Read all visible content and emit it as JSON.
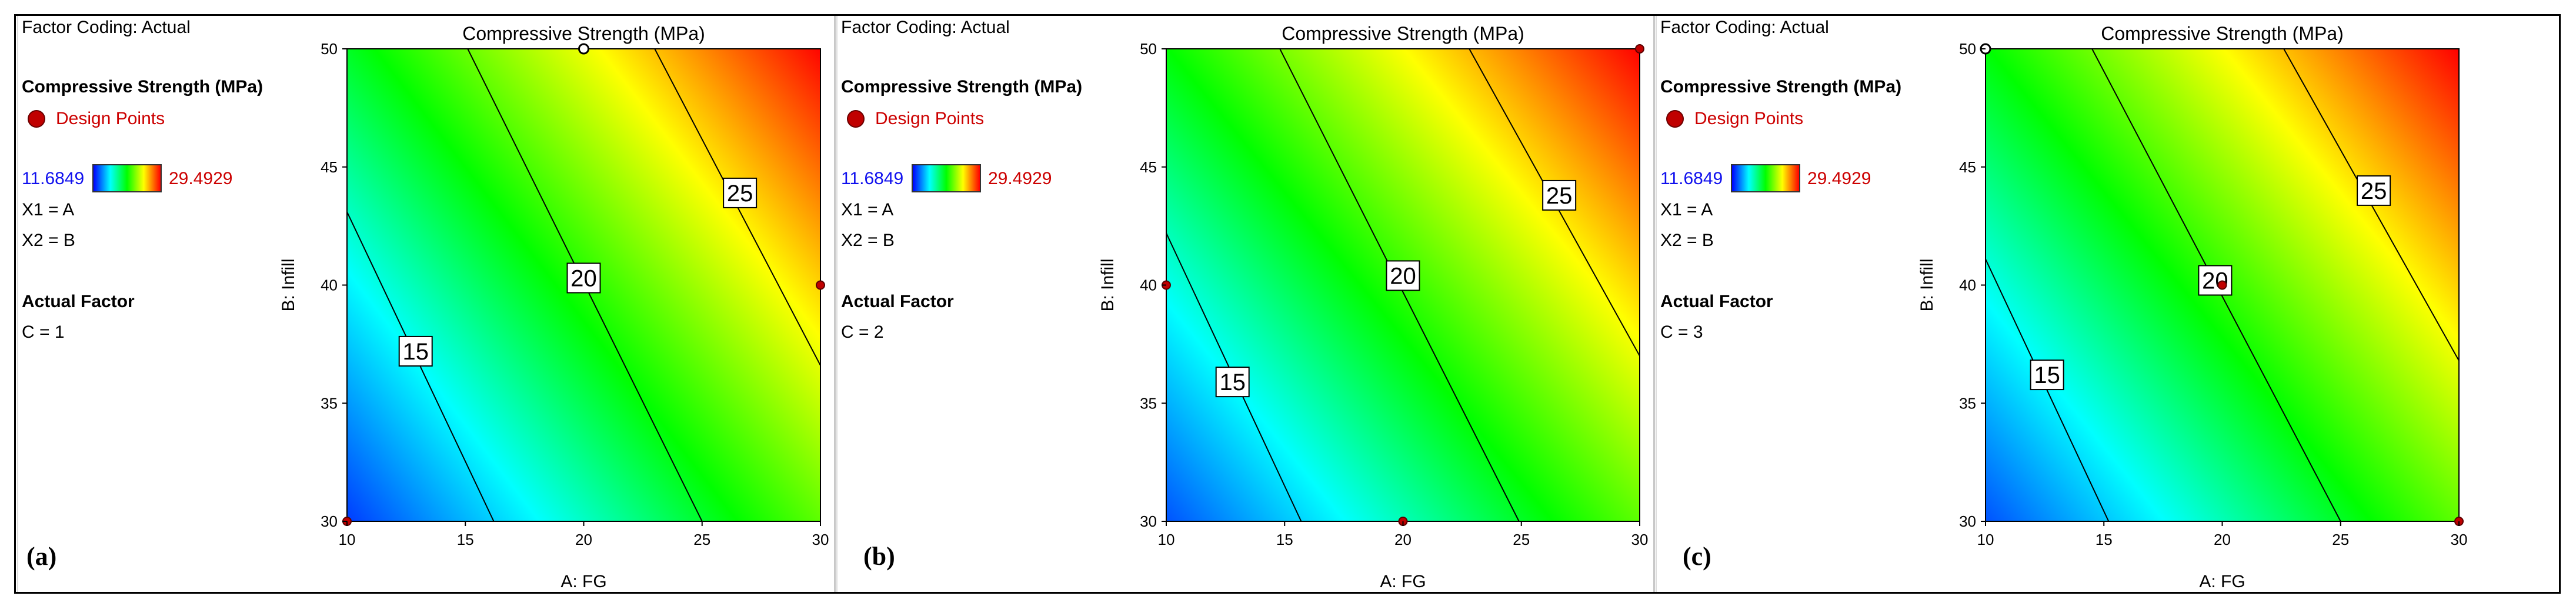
{
  "chart_data": [
    {
      "type": "heatmap",
      "panel_label": "(a)",
      "title": "Compressive Strength  (MPa)",
      "xlabel": "A: FG",
      "ylabel": "B: Infill",
      "xlim": [
        10,
        30
      ],
      "ylim": [
        30,
        50
      ],
      "xticks": [
        "10",
        "15",
        "20",
        "25",
        "30"
      ],
      "yticks": [
        "30",
        "35",
        "40",
        "45",
        "50"
      ],
      "factor_coding": "Factor Coding: Actual",
      "response_label": "Compressive Strength  (MPa)",
      "legend_label": "Design Points",
      "color_min": "11.6849",
      "color_max": "29.4929",
      "x1_label": "X1 = A",
      "x2_label": "X2 = B",
      "actual_factor_heading": "Actual Factor",
      "actual_factor_value": "C = 1",
      "contours": [
        {
          "level": 15,
          "label": "15",
          "start": [
            10,
            43.1
          ],
          "end": [
            16.2,
            30
          ],
          "label_at": [
            12.9,
            37.2
          ]
        },
        {
          "level": 20,
          "label": "20",
          "start": [
            15.1,
            50
          ],
          "end": [
            25.0,
            30
          ],
          "label_at": [
            20.0,
            40.3
          ]
        },
        {
          "level": 25,
          "label": "25",
          "start": [
            23.0,
            50
          ],
          "end": [
            30,
            36.6
          ],
          "label_at": [
            26.6,
            43.9
          ]
        }
      ],
      "design_points": [
        {
          "x": 10,
          "y": 30,
          "style": "filled"
        },
        {
          "x": 30,
          "y": 40,
          "style": "filled"
        },
        {
          "x": 20,
          "y": 50,
          "style": "hollow"
        }
      ]
    },
    {
      "type": "heatmap",
      "panel_label": "(b)",
      "title": "Compressive Strength  (MPa)",
      "xlabel": "A: FG",
      "ylabel": "B: Infill",
      "xlim": [
        10,
        30
      ],
      "ylim": [
        30,
        50
      ],
      "xticks": [
        "10",
        "15",
        "20",
        "25",
        "30"
      ],
      "yticks": [
        "30",
        "35",
        "40",
        "45",
        "50"
      ],
      "factor_coding": "Factor Coding: Actual",
      "response_label": "Compressive Strength  (MPa)",
      "legend_label": "Design Points",
      "color_min": "11.6849",
      "color_max": "29.4929",
      "x1_label": "X1 = A",
      "x2_label": "X2 = B",
      "actual_factor_heading": "Actual Factor",
      "actual_factor_value": "C = 2",
      "contours": [
        {
          "level": 15,
          "label": "15",
          "start": [
            10,
            42.2
          ],
          "end": [
            15.7,
            30
          ],
          "label_at": [
            12.8,
            35.9
          ]
        },
        {
          "level": 20,
          "label": "20",
          "start": [
            14.8,
            50
          ],
          "end": [
            24.9,
            30
          ],
          "label_at": [
            20.0,
            40.4
          ]
        },
        {
          "level": 25,
          "label": "25",
          "start": [
            22.8,
            50
          ],
          "end": [
            30,
            37.0
          ],
          "label_at": [
            26.6,
            43.8
          ]
        }
      ],
      "design_points": [
        {
          "x": 10,
          "y": 40,
          "style": "filled"
        },
        {
          "x": 20,
          "y": 30,
          "style": "filled"
        },
        {
          "x": 30,
          "y": 50,
          "style": "filled"
        }
      ]
    },
    {
      "type": "heatmap",
      "panel_label": "(c)",
      "title": "Compressive Strength  (MPa)",
      "xlabel": "A: FG",
      "ylabel": "B: Infill",
      "xlim": [
        10,
        30
      ],
      "ylim": [
        30,
        50
      ],
      "xticks": [
        "10",
        "15",
        "20",
        "25",
        "30"
      ],
      "yticks": [
        "30",
        "35",
        "40",
        "45",
        "50"
      ],
      "factor_coding": "Factor Coding: Actual",
      "response_label": "Compressive Strength  (MPa)",
      "legend_label": "Design Points",
      "color_min": "11.6849",
      "color_max": "29.4929",
      "x1_label": "X1 = A",
      "x2_label": "X2 = B",
      "actual_factor_heading": "Actual Factor",
      "actual_factor_value": "C = 3",
      "contours": [
        {
          "level": 15,
          "label": "15",
          "start": [
            10,
            41.1
          ],
          "end": [
            15.2,
            30
          ],
          "label_at": [
            12.6,
            36.2
          ]
        },
        {
          "level": 20,
          "label": "20",
          "start": [
            14.5,
            50
          ],
          "end": [
            25.0,
            30
          ],
          "label_at": [
            19.7,
            40.2
          ]
        },
        {
          "level": 25,
          "label": "25",
          "start": [
            22.6,
            50
          ],
          "end": [
            30,
            36.8
          ],
          "label_at": [
            26.4,
            44.0
          ]
        }
      ],
      "design_points": [
        {
          "x": 20,
          "y": 40,
          "style": "filled"
        },
        {
          "x": 30,
          "y": 30,
          "style": "filled"
        },
        {
          "x": 10,
          "y": 50,
          "style": "hollow"
        }
      ]
    }
  ]
}
